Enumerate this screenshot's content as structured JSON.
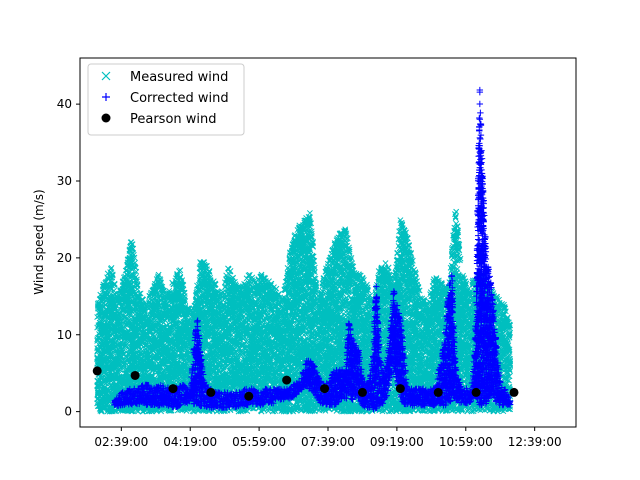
{
  "chart_data": {
    "type": "scatter",
    "title": "",
    "xlabel": "",
    "ylabel": "Wind speed (m/s)",
    "xlim": [
      "01:39:00",
      "13:39:00"
    ],
    "ylim": [
      -2,
      46
    ],
    "x_ticks": [
      "02:39:00",
      "04:19:00",
      "05:59:00",
      "07:39:00",
      "09:19:00",
      "10:59:00",
      "12:39:00"
    ],
    "y_ticks": [
      0,
      10,
      20,
      30,
      40
    ],
    "grid": false,
    "legend_position": "top-left",
    "series": [
      {
        "name": "Measured wind",
        "marker": "x",
        "color": "#00bfbf",
        "style": "dense band between low and high envelope",
        "x": [
          "02:04:00",
          "02:14:00",
          "02:24:00",
          "02:34:00",
          "02:44:00",
          "02:54:00",
          "03:04:00",
          "03:14:00",
          "03:24:00",
          "03:34:00",
          "03:44:00",
          "03:54:00",
          "04:04:00",
          "04:14:00",
          "04:24:00",
          "04:34:00",
          "04:44:00",
          "04:54:00",
          "05:04:00",
          "05:14:00",
          "05:24:00",
          "05:34:00",
          "05:44:00",
          "05:54:00",
          "06:04:00",
          "06:14:00",
          "06:24:00",
          "06:34:00",
          "06:44:00",
          "06:54:00",
          "07:04:00",
          "07:14:00",
          "07:24:00",
          "07:34:00",
          "07:44:00",
          "07:54:00",
          "08:04:00",
          "08:14:00",
          "08:24:00",
          "08:34:00",
          "08:44:00",
          "08:54:00",
          "09:04:00",
          "09:14:00",
          "09:24:00",
          "09:34:00",
          "09:44:00",
          "09:54:00",
          "10:04:00",
          "10:14:00",
          "10:24:00",
          "10:34:00",
          "10:44:00",
          "10:54:00",
          "11:04:00",
          "11:14:00",
          "11:24:00",
          "11:34:00",
          "11:44:00",
          "11:54:00",
          "12:04:00"
        ],
        "low": [
          0,
          0,
          0,
          0,
          0,
          0,
          0,
          0,
          0,
          0,
          0,
          0,
          0,
          0,
          0,
          0,
          0,
          0,
          0,
          0,
          0,
          0,
          0,
          0,
          0,
          0,
          0,
          0,
          0,
          0,
          0,
          0,
          0,
          0,
          0,
          0,
          0,
          0,
          0,
          0,
          0,
          0,
          0,
          0,
          0,
          0,
          0,
          0,
          0,
          0,
          0,
          0,
          0,
          0,
          0,
          0,
          0,
          0,
          0,
          0,
          0
        ],
        "high": [
          14,
          17,
          19,
          15,
          18,
          23,
          16,
          14,
          16,
          18,
          15,
          17,
          19,
          14,
          13,
          20,
          19,
          17,
          15,
          19,
          17,
          16,
          18,
          17,
          18,
          17,
          16,
          15,
          21,
          24,
          25,
          26,
          14,
          18,
          21,
          23,
          24,
          20,
          18,
          17,
          14,
          19,
          20,
          16,
          25,
          23,
          19,
          15,
          14,
          18,
          17,
          16,
          27,
          18,
          16,
          18,
          18,
          16,
          15,
          14,
          12
        ]
      },
      {
        "name": "Corrected wind",
        "marker": "+",
        "color": "#0000ff",
        "style": "dense band between low and high envelope",
        "x": [
          "02:29:00",
          "02:39:00",
          "02:49:00",
          "02:59:00",
          "03:09:00",
          "03:19:00",
          "03:29:00",
          "03:39:00",
          "03:49:00",
          "03:59:00",
          "04:09:00",
          "04:19:00",
          "04:29:00",
          "04:39:00",
          "04:49:00",
          "04:59:00",
          "05:09:00",
          "05:19:00",
          "05:29:00",
          "05:39:00",
          "05:49:00",
          "05:59:00",
          "06:09:00",
          "06:19:00",
          "06:29:00",
          "06:39:00",
          "06:49:00",
          "06:59:00",
          "07:09:00",
          "07:19:00",
          "07:29:00",
          "07:39:00",
          "07:49:00",
          "07:59:00",
          "08:04:00",
          "08:09:00",
          "08:14:00",
          "08:19:00",
          "08:24:00",
          "08:29:00",
          "08:34:00",
          "08:39:00",
          "08:44:00",
          "08:49:00",
          "08:54:00",
          "08:59:00",
          "09:04:00",
          "09:09:00",
          "09:14:00",
          "09:19:00",
          "09:24:00",
          "09:29:00",
          "09:34:00",
          "09:39:00",
          "09:44:00",
          "09:49:00",
          "09:54:00",
          "09:59:00",
          "10:04:00",
          "10:09:00",
          "10:14:00",
          "10:19:00",
          "10:24:00",
          "10:29:00",
          "10:34:00",
          "10:39:00",
          "10:44:00",
          "10:49:00",
          "10:54:00",
          "10:59:00",
          "11:04:00",
          "11:09:00",
          "11:14:00",
          "11:19:00",
          "11:24:00",
          "11:29:00",
          "11:34:00",
          "11:39:00",
          "11:44:00",
          "11:49:00",
          "11:54:00",
          "11:59:00",
          "12:04:00"
        ],
        "low": [
          0.3,
          0.6,
          0.8,
          1.0,
          1.0,
          0.8,
          0.8,
          0.8,
          0.6,
          0.6,
          1.0,
          1.2,
          0.8,
          0.6,
          0.5,
          0.5,
          0.5,
          0.6,
          0.6,
          0.8,
          1.0,
          0.8,
          1.0,
          1.0,
          1.5,
          1.5,
          2.0,
          2.5,
          3.0,
          2.5,
          1.0,
          0.8,
          0.8,
          1.5,
          1.5,
          2.0,
          1.5,
          2.0,
          1.5,
          0.8,
          0.5,
          0.4,
          0.3,
          0.4,
          0.5,
          1.0,
          2.0,
          4.0,
          6.0,
          4.0,
          2.0,
          1.0,
          0.8,
          0.8,
          0.8,
          0.8,
          0.8,
          0.8,
          0.8,
          0.8,
          0.8,
          0.8,
          0.8,
          0.8,
          1.0,
          1.5,
          1.5,
          1.2,
          1.0,
          1.0,
          1.0,
          1.5,
          2.0,
          0.8,
          0.8,
          1.0,
          2.0,
          2.0,
          1.0,
          0.8,
          0.8,
          0.8,
          0.8
        ],
        "high": [
          1.5,
          2.5,
          3.0,
          3.0,
          3.5,
          3.5,
          3.2,
          3.5,
          3.0,
          3.2,
          3.5,
          3.0,
          13.0,
          4.0,
          3.0,
          2.5,
          2.5,
          2.5,
          2.5,
          3.0,
          3.0,
          2.5,
          3.0,
          3.0,
          3.0,
          3.0,
          3.5,
          4.0,
          7.0,
          6.0,
          4.0,
          4.0,
          5.5,
          5.5,
          5.0,
          12.0,
          10.0,
          9.0,
          8.0,
          5.0,
          4.0,
          4.0,
          7.0,
          17.0,
          7.0,
          5.0,
          6.0,
          10.0,
          16.0,
          14.0,
          12.0,
          8.0,
          3.0,
          3.0,
          3.0,
          3.0,
          3.0,
          3.0,
          3.0,
          3.0,
          3.0,
          5.0,
          7.0,
          10.0,
          16.0,
          18.0,
          6.0,
          4.0,
          3.0,
          3.0,
          3.0,
          4.0,
          13.0,
          43.0,
          30.0,
          20.0,
          18.0,
          14.0,
          8.0,
          4.0,
          3.0,
          3.0,
          2.0
        ]
      },
      {
        "name": "Pearson wind",
        "marker": "o",
        "color": "#000000",
        "x": [
          "02:04:00",
          "02:59:00",
          "03:54:00",
          "04:49:00",
          "05:44:00",
          "06:39:00",
          "07:34:00",
          "08:29:00",
          "09:24:00",
          "10:19:00",
          "11:14:00",
          "12:09:00"
        ],
        "y": [
          5.3,
          4.7,
          3.0,
          2.5,
          2.0,
          4.1,
          3.0,
          2.5,
          3.0,
          2.5,
          2.5,
          2.5
        ]
      }
    ]
  }
}
